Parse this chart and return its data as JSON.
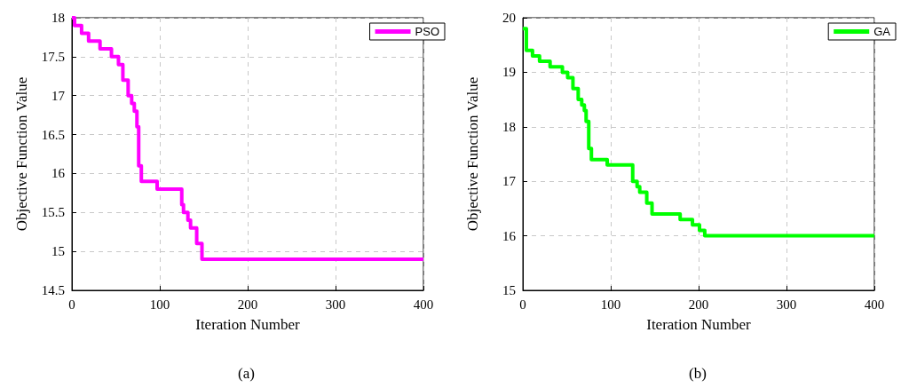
{
  "chart_data": [
    {
      "type": "step",
      "xlabel": "Iteration Number",
      "ylabel": "Objective Function Value",
      "annotations": [
        "(a)"
      ],
      "series": [
        {
          "name": "PSO",
          "color": "#ff00ff",
          "x": [
            0,
            3,
            11,
            19,
            32,
            45,
            53,
            58,
            64,
            68,
            71,
            74,
            76,
            79,
            97,
            125,
            127,
            132,
            135,
            142,
            148,
            400
          ],
          "values": [
            18,
            17.9,
            17.8,
            17.7,
            17.6,
            17.5,
            17.4,
            17.2,
            17,
            16.9,
            16.8,
            16.6,
            16.1,
            15.9,
            15.8,
            15.6,
            15.5,
            15.4,
            15.3,
            15.1,
            14.9,
            14.9
          ]
        }
      ],
      "xlim": [
        0,
        400
      ],
      "xticks": [
        0,
        100,
        200,
        300,
        400
      ],
      "ylim": [
        14.5,
        18
      ],
      "yticks": [
        14.5,
        15,
        15.5,
        16,
        16.5,
        17,
        17.5,
        18
      ],
      "grid": true,
      "legend": "top right"
    },
    {
      "type": "step",
      "xlabel": "Iteration Number",
      "ylabel": "Objective Function Value",
      "annotations": [
        "(b)"
      ],
      "series": [
        {
          "name": "GA",
          "color": "#00ff00",
          "x": [
            0,
            4,
            11,
            19,
            31,
            45,
            51,
            57,
            63,
            67,
            70,
            72,
            75,
            78,
            96,
            125,
            130,
            133,
            141,
            147,
            179,
            193,
            201,
            207,
            400
          ],
          "values": [
            19.8,
            19.4,
            19.3,
            19.2,
            19.1,
            19,
            18.9,
            18.7,
            18.5,
            18.4,
            18.3,
            18.1,
            17.6,
            17.4,
            17.3,
            17,
            16.9,
            16.8,
            16.6,
            16.4,
            16.3,
            16.2,
            16.1,
            16,
            16
          ]
        }
      ],
      "xlim": [
        0,
        400
      ],
      "xticks": [
        0,
        100,
        200,
        300,
        400
      ],
      "ylim": [
        15,
        20
      ],
      "yticks": [
        15,
        16,
        17,
        18,
        19,
        20
      ],
      "grid": true,
      "legend": "top right"
    }
  ]
}
